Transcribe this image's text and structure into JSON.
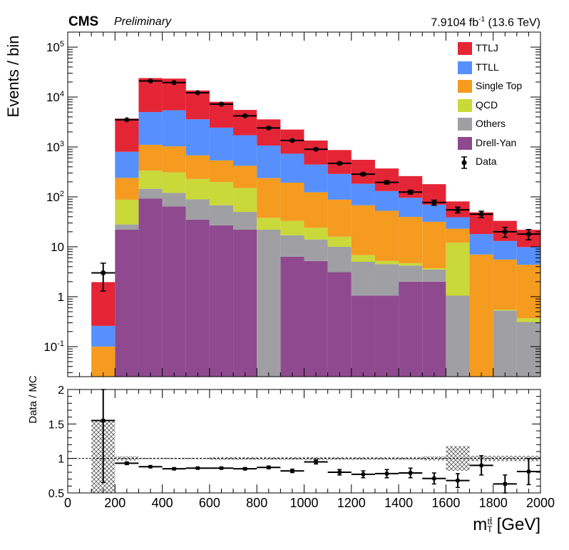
{
  "header": {
    "experiment": "CMS",
    "status": "Preliminary",
    "lumi_value": "7.9104 fb",
    "lumi_exp": "-1",
    "energy": " (13.6 TeV)"
  },
  "chart_data": [
    {
      "type": "bar",
      "subtype": "stacked-histogram",
      "ylabel": "Events / bin",
      "yscale": "log",
      "ylim": [
        0.025,
        200000
      ],
      "xlim": [
        0,
        2000
      ],
      "bin_edges": [
        100,
        200,
        300,
        400,
        500,
        600,
        700,
        800,
        900,
        1000,
        1100,
        1200,
        1300,
        1400,
        1500,
        1600,
        1700,
        1800,
        1900,
        2000
      ],
      "y_tick_labels": [
        "10-1",
        "1",
        "10",
        "102",
        "103",
        "104",
        "105"
      ],
      "legend": {
        "placement": "top-right",
        "entries": [
          "TTLJ",
          "TTLL",
          "Single Top",
          "QCD",
          "Others",
          "Drell-Yan",
          "Data"
        ]
      },
      "series": [
        {
          "name": "Drell-Yan",
          "color": "#8f4a8f",
          "values": [
            0,
            22,
            93,
            64,
            35,
            27,
            22,
            0,
            6.3,
            5.2,
            3.1,
            1.05,
            1.05,
            2.0,
            2.0,
            0,
            0,
            0,
            0
          ]
        },
        {
          "name": "Others",
          "color": "#a0a0a4",
          "values": [
            0,
            6,
            52,
            56,
            54,
            41,
            28,
            22,
            10.7,
            8.8,
            6.9,
            3.95,
            3.45,
            2.2,
            1.5,
            1.05,
            0,
            0.53,
            0.31
          ]
        },
        {
          "name": "QCD",
          "color": "#c9d93a",
          "values": [
            0,
            60,
            190,
            190,
            140,
            130,
            100,
            16,
            16,
            10,
            6,
            1.8,
            0.7,
            0.5,
            0.2,
            11,
            0,
            0.02,
            0.06
          ]
        },
        {
          "name": "Single Top",
          "color": "#f59b1f",
          "values": [
            0.1,
            152,
            770,
            720,
            450,
            340,
            270,
            200,
            160,
            100,
            72,
            61,
            47.5,
            35,
            28,
            11,
            7,
            5,
            4
          ]
        },
        {
          "name": "TTLL",
          "color": "#5790fc",
          "values": [
            0.16,
            560,
            3900,
            4400,
            2900,
            1900,
            1300,
            830,
            540,
            320,
            200,
            115,
            78,
            56,
            38,
            16,
            11,
            7.5,
            5.5
          ]
        },
        {
          "name": "TTLJ",
          "color": "#e42536",
          "values": [
            1.7,
            2900,
            19000,
            18000,
            10000,
            5600,
            3800,
            2500,
            1500,
            900,
            580,
            370,
            240,
            165,
            110,
            42,
            31,
            20,
            12
          ]
        }
      ],
      "data_points": {
        "name": "Data",
        "color": "#000000",
        "x": [
          150,
          250,
          350,
          450,
          550,
          650,
          750,
          850,
          950,
          1050,
          1150,
          1250,
          1350,
          1450,
          1550,
          1650,
          1750,
          1850,
          1950
        ],
        "y": [
          3.0,
          3500,
          21000,
          19500,
          12200,
          7200,
          4200,
          2400,
          1350,
          900,
          470,
          285,
          195,
          125,
          77,
          55,
          45,
          20,
          18
        ],
        "y_err": [
          1.7,
          59,
          145,
          140,
          110,
          85,
          65,
          49,
          37,
          30,
          22,
          17,
          14,
          11,
          9,
          7.4,
          6.7,
          4.5,
          4.2
        ]
      }
    },
    {
      "type": "scatter",
      "subtype": "ratio",
      "ylabel": "Data / MC",
      "xlabel": "m",
      "xlabel_sup": "tt̄",
      "xlabel_sub": "T",
      "xlabel_unit": "[GeV]",
      "xlim": [
        0,
        2000
      ],
      "ylim": [
        0.5,
        2
      ],
      "x_ticks": [
        0,
        200,
        400,
        600,
        800,
        1000,
        1200,
        1400,
        1600,
        1800,
        2000
      ],
      "y_ticks": [
        "0.5",
        "1",
        "1.5",
        "2"
      ],
      "reference_line": 1,
      "points": {
        "x": [
          150,
          250,
          350,
          450,
          550,
          650,
          750,
          850,
          950,
          1050,
          1150,
          1250,
          1350,
          1450,
          1550,
          1650,
          1750,
          1850,
          1950
        ],
        "y": [
          1.55,
          0.93,
          0.88,
          0.85,
          0.86,
          0.86,
          0.85,
          0.87,
          0.82,
          0.95,
          0.8,
          0.77,
          0.78,
          0.79,
          0.71,
          0.68,
          0.9,
          0.63,
          0.81
        ],
        "y_err": [
          0.9,
          0.02,
          0.01,
          0.01,
          0.01,
          0.01,
          0.015,
          0.02,
          0.025,
          0.03,
          0.04,
          0.05,
          0.06,
          0.07,
          0.08,
          0.1,
          0.14,
          0.13,
          0.19
        ]
      },
      "mc_uncertainty": [
        0.55,
        0.03,
        0.01,
        0.01,
        0.01,
        0.02,
        0.02,
        0.02,
        0.02,
        0.02,
        0.02,
        0.02,
        0.02,
        0.02,
        0.03,
        0.18,
        0.04,
        0.04,
        0.04
      ]
    }
  ]
}
